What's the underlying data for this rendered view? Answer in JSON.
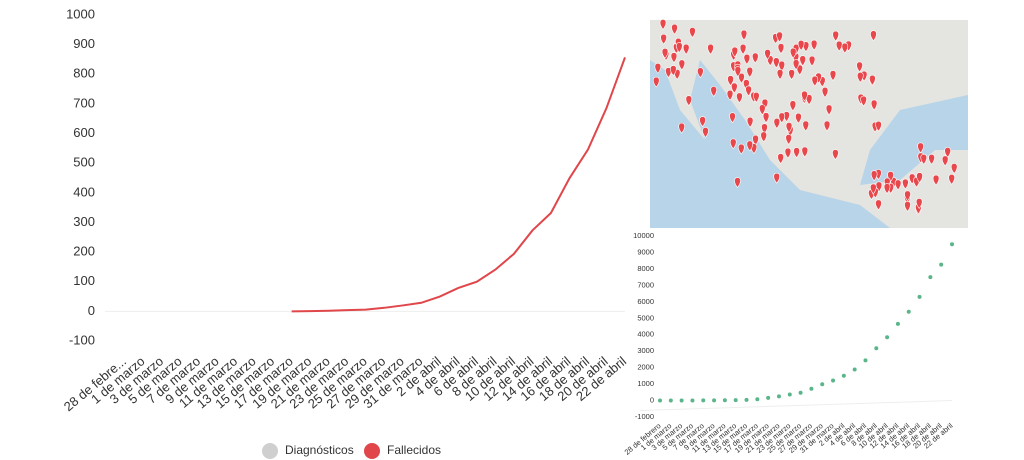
{
  "chart_data": [
    {
      "type": "line",
      "categories": [
        "28 de febre...",
        "1 de marzo",
        "3 de marzo",
        "5 de marzo",
        "7 de marzo",
        "9 de marzo",
        "11 de marzo",
        "13 de marzo",
        "15 de marzo",
        "17 de marzo",
        "19 de marzo",
        "21 de marzo",
        "23 de marzo",
        "25 de marzo",
        "27 de marzo",
        "29 de marzo",
        "31 de marzo",
        "2 de abril",
        "4 de abril",
        "6 de abril",
        "8 de abril",
        "10 de abril",
        "12 de abril",
        "14 de abril",
        "16 de abril",
        "18 de abril",
        "20 de abril",
        "22 de abril"
      ],
      "series": [
        {
          "color": "#e0464a",
          "values": [
            null,
            null,
            null,
            null,
            null,
            null,
            null,
            null,
            null,
            0,
            1,
            2,
            4,
            6,
            12,
            20,
            29,
            50,
            79,
            100,
            141,
            194,
            273,
            332,
            449,
            546,
            686,
            857
          ]
        }
      ],
      "ylim": [
        -100,
        1000
      ],
      "yticks": [
        -100,
        0,
        100,
        200,
        300,
        400,
        500,
        600,
        700,
        800,
        900,
        1000
      ],
      "legend": [
        {
          "name": "Diagnósticos",
          "color": "#cfcfcf"
        },
        {
          "name": "Fallecidos",
          "color": "#e0464a"
        }
      ]
    },
    {
      "type": "scatter",
      "categories": [
        "28 de febrero",
        "1 de marzo",
        "3 de marzo",
        "5 de marzo",
        "7 de marzo",
        "9 de marzo",
        "11 de marzo",
        "13 de marzo",
        "15 de marzo",
        "17 de marzo",
        "19 de marzo",
        "21 de marzo",
        "23 de marzo",
        "25 de marzo",
        "27 de marzo",
        "29 de marzo",
        "31 de marzo",
        "2 de abril",
        "4 de abril",
        "6 de abril",
        "8 de abril",
        "10 de abril",
        "12 de abril",
        "14 de abril",
        "16 de abril",
        "18 de abril",
        "20 de abril",
        "22 de abril"
      ],
      "series": [
        {
          "color": "#5bb58a",
          "values": [
            1,
            2,
            5,
            6,
            7,
            12,
            16,
            26,
            41,
            82,
            164,
            251,
            367,
            475,
            717,
            993,
            1215,
            1510,
            1890,
            2439,
            3181,
            3844,
            4661,
            5399,
            6297,
            7497,
            8261,
            9501
          ]
        }
      ],
      "ylim": [
        -1000,
        10000
      ],
      "yticks": [
        -1000,
        0,
        1000,
        2000,
        3000,
        4000,
        5000,
        6000,
        7000,
        8000,
        9000,
        10000
      ]
    }
  ]
}
